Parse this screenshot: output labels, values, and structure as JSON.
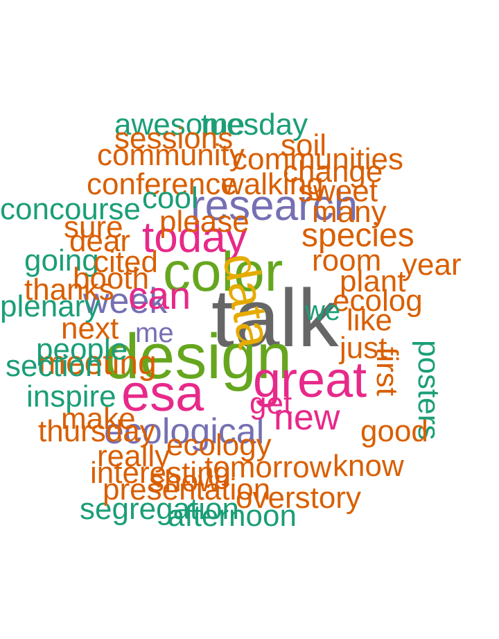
{
  "palette": {
    "orange": "#d95f02",
    "teal": "#1b9e77",
    "purple": "#7570b3",
    "magenta": "#e7298a",
    "green": "#66a61e",
    "gold": "#e6ab02",
    "gray": "#666666"
  },
  "words": [
    {
      "text": "talk",
      "color": "gray"
    },
    {
      "text": "design",
      "color": "green"
    },
    {
      "text": "color",
      "color": "green"
    },
    {
      "text": "esa",
      "color": "magenta"
    },
    {
      "text": "great",
      "color": "magenta"
    },
    {
      "text": "today",
      "color": "magenta"
    },
    {
      "text": "research",
      "color": "purple"
    },
    {
      "text": "week",
      "color": "purple"
    },
    {
      "text": "ecological",
      "color": "purple"
    },
    {
      "text": "new",
      "color": "magenta"
    },
    {
      "text": "species",
      "color": "orange"
    },
    {
      "text": "meeting",
      "color": "orange"
    },
    {
      "text": "going",
      "color": "teal"
    },
    {
      "text": "posters",
      "color": "teal"
    },
    {
      "text": "concourse",
      "color": "teal"
    },
    {
      "text": "awesome",
      "color": "teal"
    },
    {
      "text": "tuesday",
      "color": "teal"
    },
    {
      "text": "plenary",
      "color": "teal"
    },
    {
      "text": "section",
      "color": "teal"
    },
    {
      "text": "inspire",
      "color": "teal"
    },
    {
      "text": "segregation",
      "color": "teal"
    },
    {
      "text": "afternoon",
      "color": "teal"
    },
    {
      "text": "people",
      "color": "teal"
    },
    {
      "text": "communities",
      "color": "orange"
    },
    {
      "text": "sessions",
      "color": "orange"
    },
    {
      "text": "conference",
      "color": "orange"
    },
    {
      "text": "change",
      "color": "orange"
    },
    {
      "text": "sweet",
      "color": "orange"
    },
    {
      "text": "community",
      "color": "orange"
    },
    {
      "text": "thursday",
      "color": "orange"
    },
    {
      "text": "thanks",
      "color": "orange"
    },
    {
      "text": "booth",
      "color": "orange"
    },
    {
      "text": "next",
      "color": "orange"
    },
    {
      "text": "interesting",
      "color": "orange"
    },
    {
      "text": "presentation",
      "color": "orange"
    },
    {
      "text": "tomorrow",
      "color": "orange"
    },
    {
      "text": "overstory",
      "color": "orange"
    },
    {
      "text": "really",
      "color": "orange"
    },
    {
      "text": "make",
      "color": "orange"
    },
    {
      "text": "year",
      "color": "orange"
    },
    {
      "text": "cited",
      "color": "orange"
    },
    {
      "text": "many",
      "color": "orange"
    },
    {
      "text": "soil",
      "color": "orange"
    },
    {
      "text": "plant",
      "color": "orange"
    },
    {
      "text": "room",
      "color": "orange"
    },
    {
      "text": "sure",
      "color": "orange"
    },
    {
      "text": "please",
      "color": "orange"
    },
    {
      "text": "dear",
      "color": "orange"
    },
    {
      "text": "walking",
      "color": "orange"
    },
    {
      "text": "show",
      "color": "orange"
    },
    {
      "text": "ecology",
      "color": "orange"
    },
    {
      "text": "cool",
      "color": "teal"
    },
    {
      "text": "ecolog",
      "color": "orange"
    },
    {
      "text": "data",
      "color": "gold"
    },
    {
      "text": "like",
      "color": "orange"
    },
    {
      "text": "just",
      "color": "orange"
    },
    {
      "text": "can",
      "color": "magenta"
    },
    {
      "text": "get",
      "color": "magenta"
    },
    {
      "text": "good",
      "color": "orange"
    },
    {
      "text": "know",
      "color": "orange"
    },
    {
      "text": "we",
      "color": "teal"
    },
    {
      "text": "me",
      "color": "purple"
    },
    {
      "text": "first",
      "color": "orange"
    }
  ]
}
